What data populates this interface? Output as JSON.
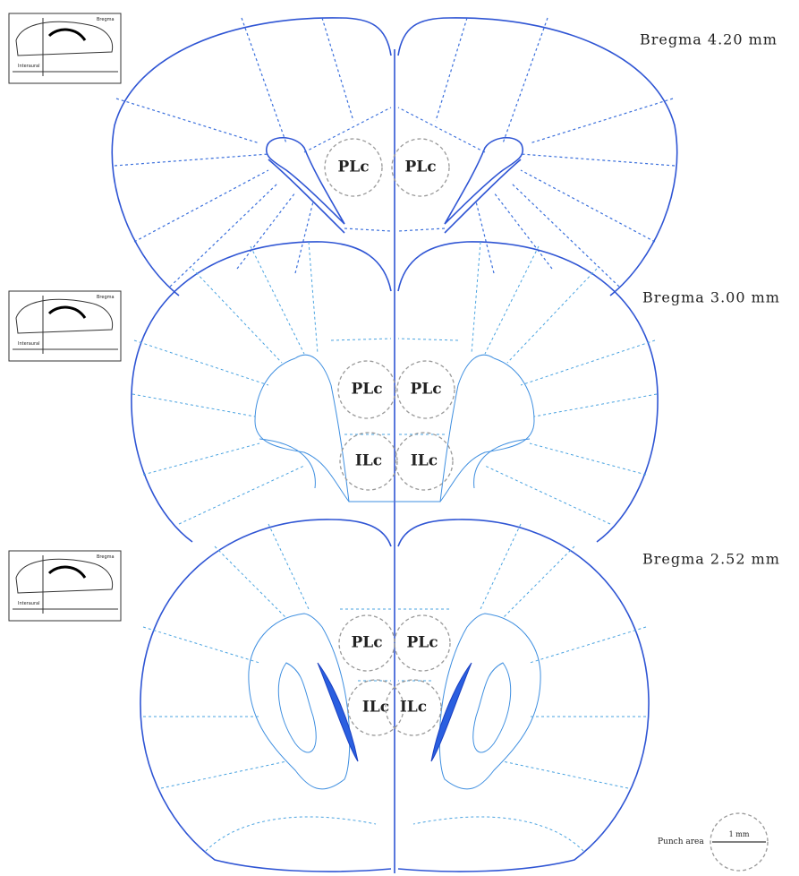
{
  "sections": [
    {
      "label": "Bregma 4.20 mm",
      "regions": [
        "PLc",
        "PLc"
      ]
    },
    {
      "label": "Bregma 3.00 mm",
      "regions": [
        "PLc",
        "PLc",
        "ILc",
        "ILc"
      ]
    },
    {
      "label": "Bregma 2.52 mm",
      "regions": [
        "PLc",
        "PLc",
        "ILc",
        "ILc"
      ]
    }
  ],
  "inset": {
    "top_label": "Bregma",
    "bottom_label": "Interaural"
  },
  "legend": {
    "label": "Punch area",
    "scale": "1 mm"
  }
}
